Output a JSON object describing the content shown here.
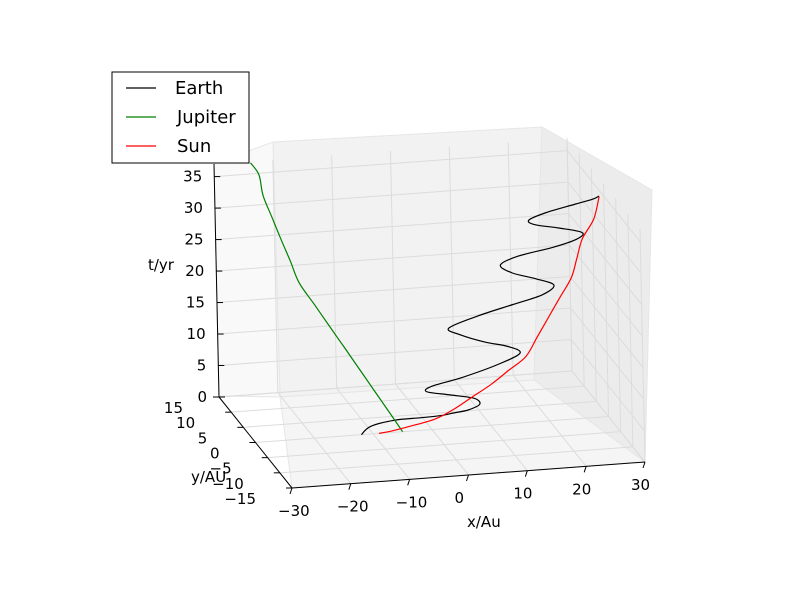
{
  "chart_data": {
    "type": "line",
    "projection": "3d",
    "xlabel": "x/Au",
    "ylabel": "y/AU",
    "zlabel": "t/yr",
    "xticks": [
      "−30",
      "−20",
      "−10",
      "0",
      "10",
      "20",
      "30"
    ],
    "yticks": [
      "−15",
      "−10",
      "−5",
      "0",
      "5",
      "10",
      "15"
    ],
    "zticks": [
      "0",
      "5",
      "10",
      "15",
      "20",
      "25",
      "30",
      "35"
    ],
    "xlim": [
      -30,
      30
    ],
    "ylim": [
      -15,
      15
    ],
    "zlim": [
      0,
      37
    ],
    "grid": true,
    "legend_position": "top-left",
    "series": [
      {
        "name": "Earth",
        "color": "#000000",
        "x": [
          -12,
          -10,
          -6,
          -2,
          1,
          3,
          5,
          7,
          6,
          2,
          -2,
          -1,
          4,
          10,
          14,
          12,
          8,
          4,
          2,
          7,
          13,
          18,
          20,
          17,
          13,
          11,
          14,
          20,
          24,
          25,
          21,
          17,
          16,
          19,
          24,
          27,
          28
        ],
        "y": [
          0,
          1,
          1,
          0,
          -1,
          -2,
          -3,
          -3,
          -3,
          -3,
          -3,
          -3,
          -3,
          -3,
          -3,
          -3,
          -3,
          -3,
          -3,
          -3,
          -3,
          -3,
          -3,
          -3,
          -3,
          -3,
          -3,
          -3,
          -3,
          -3,
          -3,
          -3,
          -3,
          -3,
          -3,
          -3,
          -3
        ],
        "t": [
          0,
          0.7,
          1.4,
          2.0,
          2.6,
          3.4,
          4.2,
          5.0,
          6.0,
          6.8,
          7.6,
          8.4,
          9.4,
          11.0,
          12.6,
          13.8,
          14.8,
          16.2,
          17.4,
          19.0,
          20.4,
          21.6,
          23.0,
          24.2,
          25.4,
          26.8,
          28.0,
          29.0,
          30.0,
          31.0,
          32.0,
          32.8,
          33.6,
          34.6,
          35.6,
          36.2,
          36.6
        ]
      },
      {
        "name": "Jupiter",
        "color": "#008000",
        "x": [
          -5,
          -7,
          -9,
          -11,
          -13,
          -15,
          -17,
          -19,
          -20,
          -21,
          -22,
          -23,
          -23,
          -24
        ],
        "y": [
          0,
          0.5,
          1.5,
          2.5,
          3.5,
          5,
          6,
          7.5,
          8.5,
          10,
          11,
          12,
          13.5,
          14.5
        ],
        "t": [
          0,
          3,
          6,
          9,
          12,
          15,
          18,
          21,
          24,
          27,
          30,
          33,
          35.5,
          37
        ]
      },
      {
        "name": "Sun",
        "color": "#ff0000",
        "x": [
          -9,
          -7,
          -4,
          0,
          3,
          6,
          9,
          12,
          15,
          17,
          19,
          21,
          23,
          24,
          25,
          27,
          28
        ],
        "y": [
          0,
          -0.5,
          -1,
          -1.5,
          -2,
          -2.5,
          -3,
          -3,
          -3,
          -3,
          -3,
          -3,
          -3,
          -3,
          -3,
          -3,
          -3
        ],
        "t": [
          0,
          0.5,
          1.3,
          2.4,
          4,
          6,
          8,
          10,
          12,
          15,
          18,
          21,
          24,
          27,
          30,
          33,
          36.5
        ]
      }
    ]
  }
}
